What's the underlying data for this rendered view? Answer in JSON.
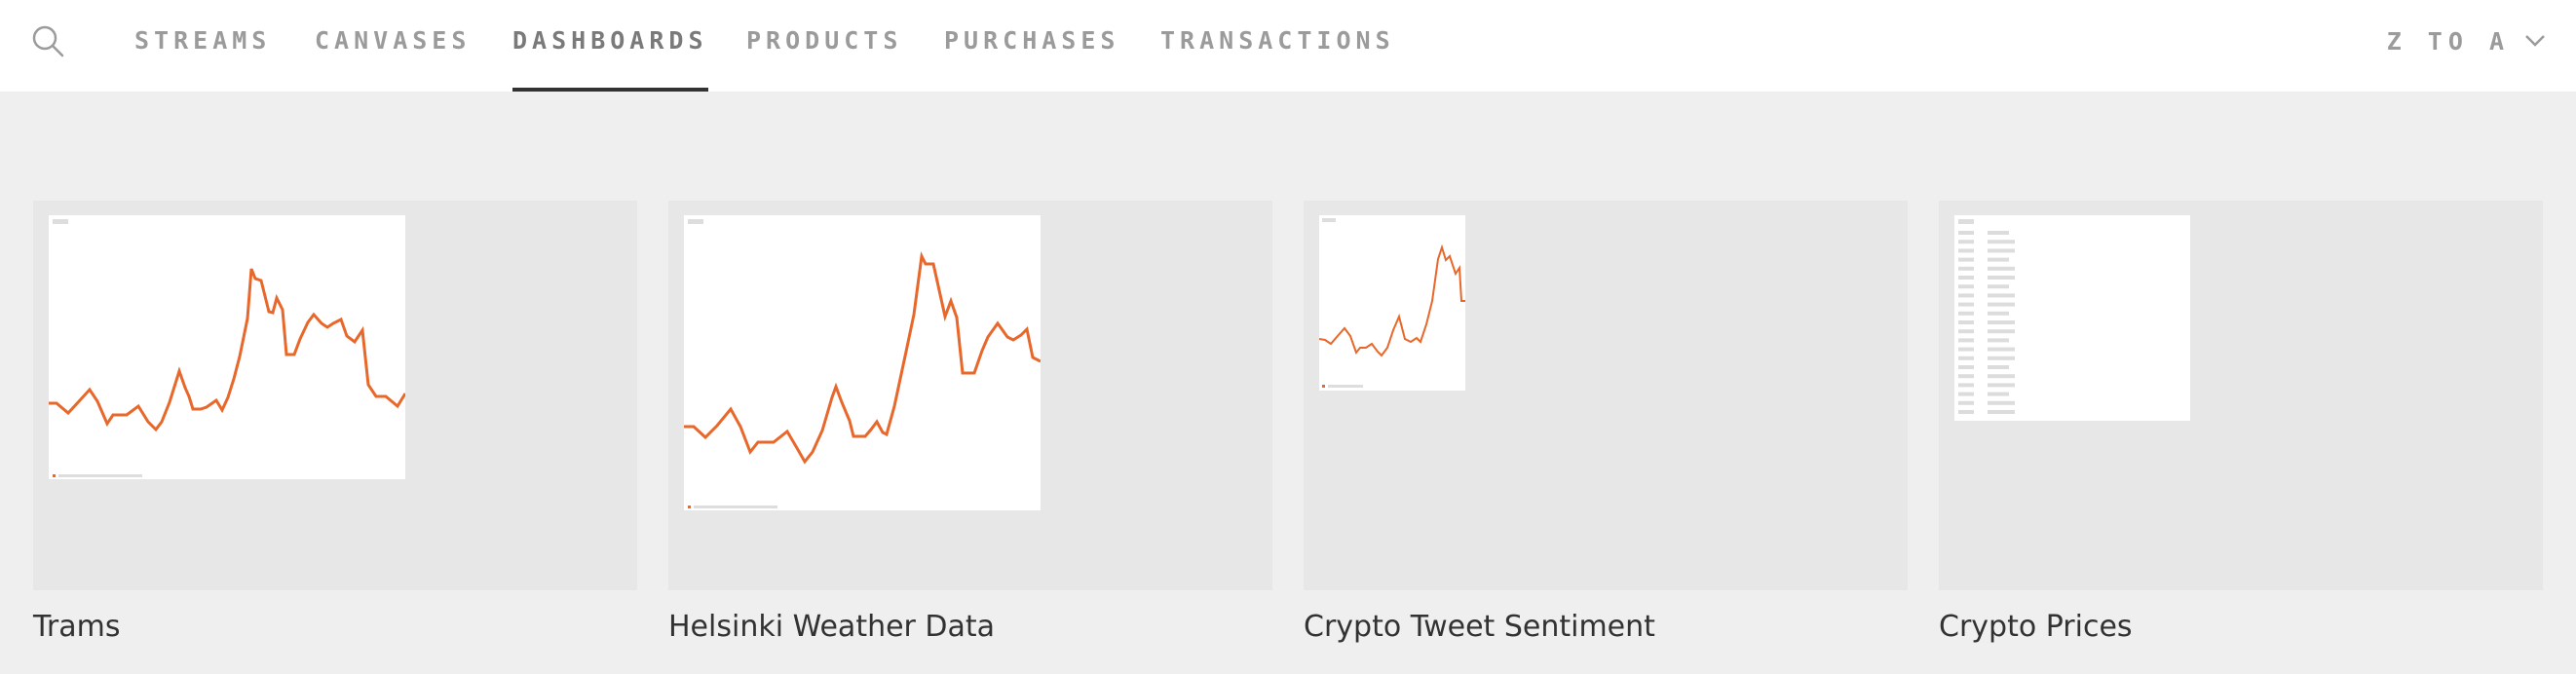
{
  "nav": {
    "tabs": [
      {
        "id": "streams",
        "label": "STREAMS",
        "active": false
      },
      {
        "id": "canvases",
        "label": "CANVASES",
        "active": false
      },
      {
        "id": "dashboards",
        "label": "DASHBOARDS",
        "active": true
      },
      {
        "id": "products",
        "label": "PRODUCTS",
        "active": false
      },
      {
        "id": "purchases",
        "label": "PURCHASES",
        "active": false
      },
      {
        "id": "transactions",
        "label": "TRANSACTIONS",
        "active": false
      }
    ],
    "sort_label": "Z TO A",
    "icons": {
      "search": "search-icon",
      "sort": "chevron-down-icon"
    }
  },
  "colors": {
    "accent": "#e8672a",
    "active_underline": "#323232",
    "tab_text": "#9b9b9b"
  },
  "dashboards": [
    {
      "title": "Trams"
    },
    {
      "title": "Helsinki Weather Data"
    },
    {
      "title": "Crypto Tweet Sentiment"
    },
    {
      "title": "Crypto Prices"
    }
  ]
}
